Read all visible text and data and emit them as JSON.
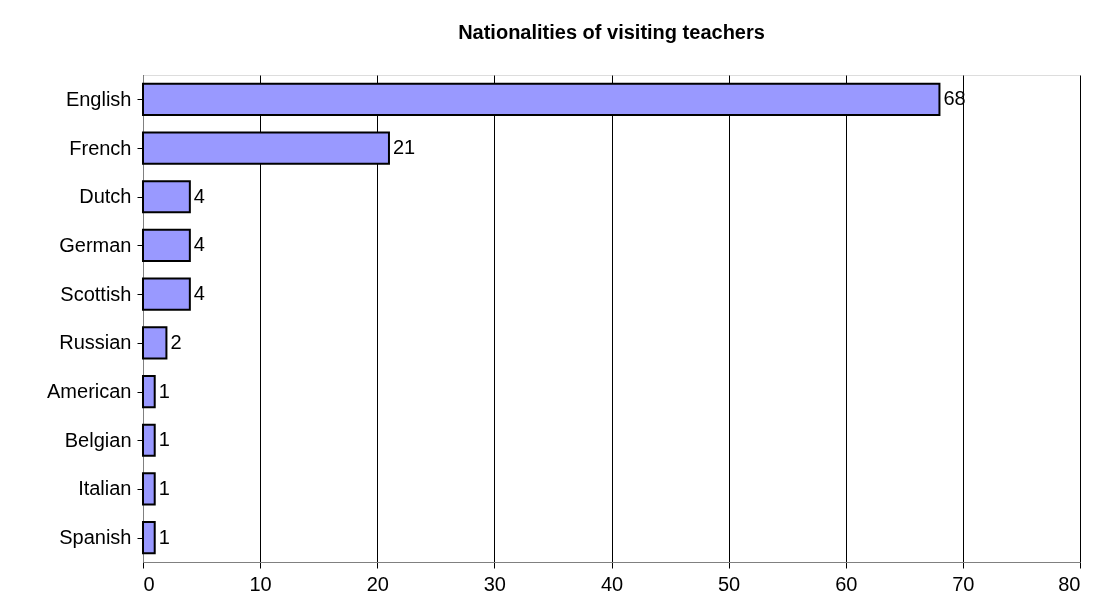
{
  "chart_data": {
    "type": "bar",
    "orientation": "horizontal",
    "title": "Nationalities of visiting teachers",
    "categories": [
      "English",
      "French",
      "Dutch",
      "German",
      "Scottish",
      "Russian",
      "American",
      "Belgian",
      "Italian",
      "Spanish"
    ],
    "values": [
      68,
      21,
      4,
      4,
      4,
      2,
      1,
      1,
      1,
      1
    ],
    "color": "#9999ff",
    "xlim": [
      0,
      80
    ],
    "xticks": [
      0,
      10,
      20,
      30,
      40,
      50,
      60,
      70,
      80
    ],
    "grid": "x",
    "data_labels": true
  }
}
